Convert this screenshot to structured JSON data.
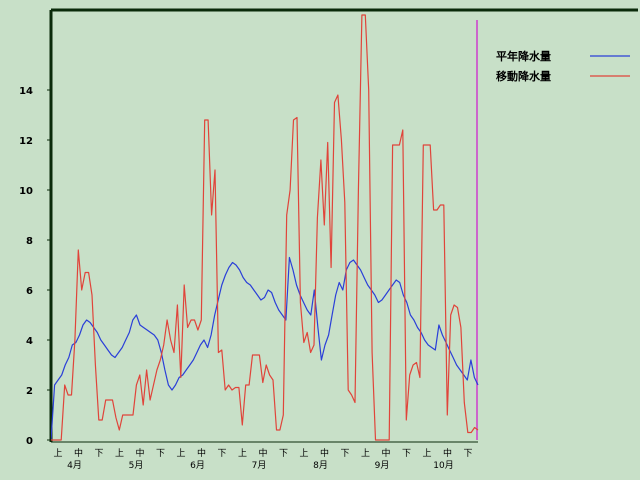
{
  "chart_data": {
    "type": "line",
    "ylim": [
      0,
      16
    ],
    "y_ticks": [
      0,
      2,
      4,
      6,
      8,
      10,
      12,
      14
    ],
    "grid": false,
    "legend_position": "top-right",
    "x_period_labels": [
      "上",
      "中",
      "下",
      "上",
      "中",
      "下",
      "上",
      "中",
      "下",
      "上",
      "中",
      "下",
      "上",
      "中",
      "下",
      "上",
      "中",
      "下",
      "上",
      "中",
      "下"
    ],
    "x_month_labels": [
      "4月",
      "5月",
      "6月",
      "7月",
      "8月",
      "9月",
      "10月"
    ],
    "colors": {
      "平年": "#2a3fd8",
      "移動": "#e0443a",
      "marker": "#cc66cc",
      "background": "#c8e0c8",
      "frame": "#0a2a0a"
    },
    "series": [
      {
        "name": "平年降水量",
        "color": "#2a3fd8",
        "values": [
          0,
          2.2,
          2.4,
          2.6,
          3.0,
          3.3,
          3.8,
          3.9,
          4.2,
          4.6,
          4.8,
          4.7,
          4.5,
          4.3,
          4.0,
          3.8,
          3.6,
          3.4,
          3.3,
          3.5,
          3.7,
          4.0,
          4.3,
          4.8,
          5.0,
          4.6,
          4.5,
          4.4,
          4.3,
          4.2,
          4.0,
          3.5,
          2.8,
          2.2,
          2.0,
          2.2,
          2.5,
          2.6,
          2.8,
          3.0,
          3.2,
          3.5,
          3.8,
          4.0,
          3.7,
          4.2,
          5.0,
          5.6,
          6.2,
          6.6,
          6.9,
          7.1,
          7.0,
          6.8,
          6.5,
          6.3,
          6.2,
          6.0,
          5.8,
          5.6,
          5.7,
          6.0,
          5.9,
          5.5,
          5.2,
          5.0,
          4.8,
          7.3,
          6.8,
          6.2,
          5.8,
          5.5,
          5.2,
          5.0,
          6.0,
          4.5,
          3.2,
          3.8,
          4.2,
          5.0,
          5.8,
          6.3,
          6.0,
          6.8,
          7.1,
          7.2,
          7.0,
          6.8,
          6.5,
          6.2,
          6.0,
          5.8,
          5.5,
          5.6,
          5.8,
          6.0,
          6.2,
          6.4,
          6.3,
          5.8,
          5.5,
          5.0,
          4.8,
          4.5,
          4.3,
          4.0,
          3.8,
          3.7,
          3.6,
          4.6,
          4.2,
          3.9,
          3.6,
          3.3,
          3.0,
          2.8,
          2.6,
          2.4,
          3.2,
          2.5,
          2.2
        ],
        "note": "x positions span 上(4月) to 下(10月)"
      },
      {
        "name": "移動降水量",
        "color": "#e0443a",
        "values": [
          0,
          0,
          0,
          0,
          2.2,
          1.8,
          1.8,
          4.0,
          7.6,
          6.0,
          6.7,
          6.7,
          5.8,
          3.0,
          0.8,
          0.8,
          1.6,
          1.6,
          1.6,
          0.9,
          0.4,
          1.0,
          1.0,
          1.0,
          1.0,
          2.2,
          2.6,
          1.4,
          2.8,
          1.6,
          2.2,
          2.8,
          3.2,
          3.8,
          4.8,
          4.0,
          3.5,
          5.4,
          2.5,
          6.2,
          4.5,
          4.8,
          4.8,
          4.4,
          4.8,
          12.8,
          12.8,
          9.0,
          10.8,
          3.5,
          3.6,
          2.0,
          2.2,
          2.0,
          2.1,
          2.1,
          0.6,
          2.2,
          2.2,
          3.4,
          3.4,
          3.4,
          2.3,
          3.0,
          2.6,
          2.4,
          0.4,
          0.4,
          1.0,
          9.0,
          10.0,
          12.8,
          12.9,
          5.5,
          3.9,
          4.3,
          3.5,
          3.8,
          8.9,
          11.2,
          8.6,
          11.9,
          6.9,
          13.5,
          13.8,
          12.0,
          9.5,
          2.0,
          1.8,
          1.5,
          10.0,
          17.0,
          17.0,
          14.0,
          3.5,
          0,
          0,
          0,
          0,
          0,
          11.8,
          11.8,
          11.8,
          12.4,
          0.8,
          2.6,
          3.0,
          3.1,
          2.5,
          11.8,
          11.8,
          11.8,
          9.2,
          9.2,
          9.4,
          9.4,
          1.0,
          5.0,
          5.4,
          5.3,
          4.5,
          1.5,
          0.3,
          0.3,
          0.5,
          0.4
        ],
        "note": "line rises above plot top near 下(8月)"
      }
    ]
  },
  "legend": {
    "items": [
      {
        "label": "平年降水量",
        "color": "#2a3fd8"
      },
      {
        "label": "移動降水量",
        "color": "#e0443a"
      }
    ]
  }
}
